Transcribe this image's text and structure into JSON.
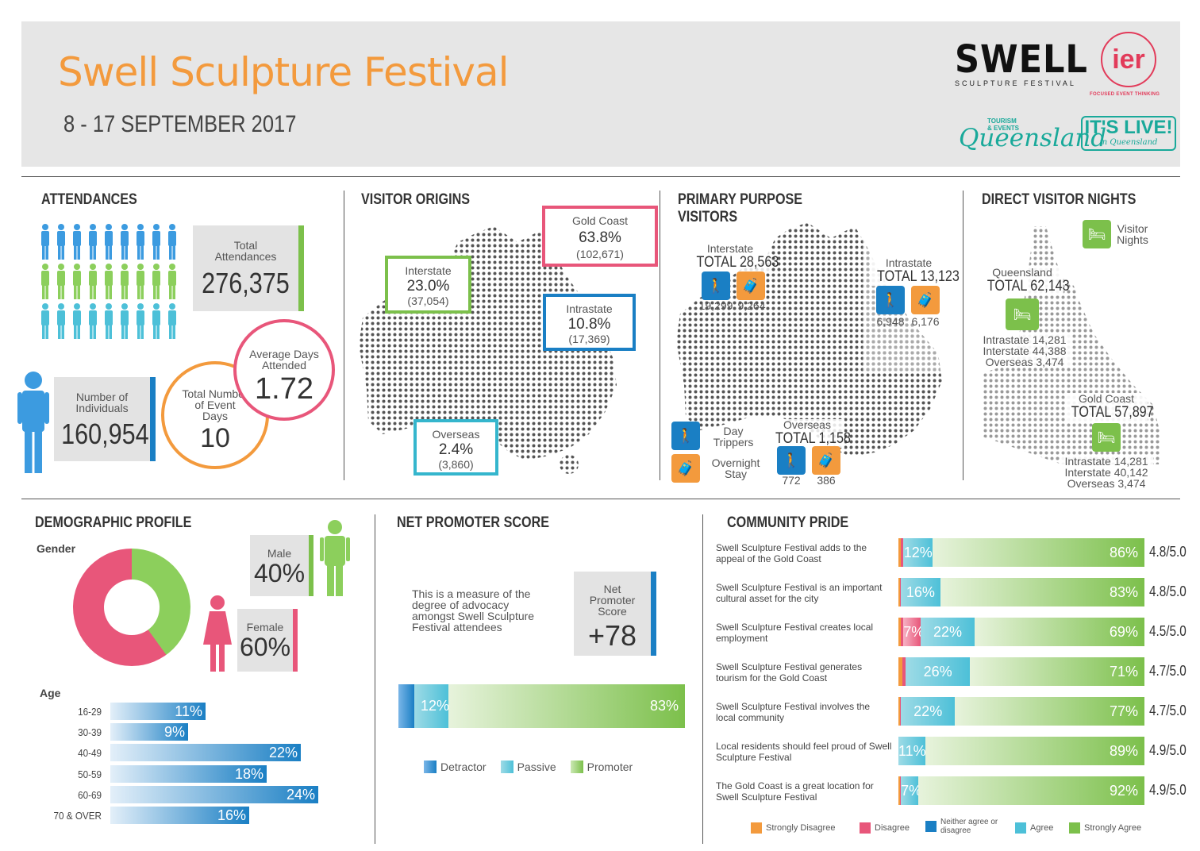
{
  "header": {
    "title": "Swell Sculpture Festival",
    "dates": "8 - 17 SEPTEMBER 2017",
    "logos": {
      "swell": "SWELL",
      "swell_sub": "SCULPTURE FESTIVAL",
      "ier": "ier",
      "ier_sub": "FOCUSED EVENT THINKING",
      "tourism_small": "TOURISM & EVENTS",
      "tourism": "Queensland",
      "itslive": "IT'S LIVE!",
      "itslive_sub": "in Queensland"
    }
  },
  "attendances": {
    "title": "ATTENDANCES",
    "total_label": "Total Attendances",
    "total_value": "276,375",
    "individuals_label": "Number of Individuals",
    "individuals_value": "160,954",
    "event_days_label": "Total Number of Event Days",
    "event_days_value": "10",
    "avg_days_label": "Average Days Attended",
    "avg_days_value": "1.72"
  },
  "visitor_origins": {
    "title": "VISITOR ORIGINS",
    "gold_coast": {
      "label": "Gold Coast",
      "pct": "63.8%",
      "count": "(102,671)"
    },
    "interstate": {
      "label": "Interstate",
      "pct": "23.0%",
      "count": "(37,054)"
    },
    "intrastate": {
      "label": "Intrastate",
      "pct": "10.8%",
      "count": "(17,369)"
    },
    "overseas": {
      "label": "Overseas",
      "pct": "2.4%",
      "count": "(3,860)"
    }
  },
  "primary_purpose": {
    "title_line1": "PRIMARY PURPOSE",
    "title_line2": "VISITORS",
    "interstate": {
      "label": "Interstate",
      "total": "TOTAL 28,563",
      "day": "19,299",
      "overnight": "9,264"
    },
    "intrastate": {
      "label": "Intrastate",
      "total": "TOTAL 13,123",
      "day": "6,948",
      "overnight": "6,176"
    },
    "overseas": {
      "label": "Overseas",
      "total": "TOTAL 1,158",
      "day": "772",
      "overnight": "386"
    },
    "legend_day": "Day Trippers",
    "legend_overnight": "Overnight Stay"
  },
  "visitor_nights": {
    "title": "DIRECT VISITOR NIGHTS",
    "legend": "Visitor Nights",
    "queensland": {
      "label": "Queensland",
      "total": "TOTAL 62,143",
      "intra": "Intrastate 14,281",
      "inter": "Interstate 44,388",
      "over": "Overseas 3,474"
    },
    "gold_coast": {
      "label": "Gold Coast",
      "total": "TOTAL 57,897",
      "intra": "Intrastate 14,281",
      "inter": "Interstate 40,142",
      "over": "Overseas 3,474"
    }
  },
  "demographic": {
    "title": "DEMOGRAPHIC PROFILE",
    "gender_label": "Gender",
    "male_label": "Male",
    "male_value": "40%",
    "female_label": "Female",
    "female_value": "60%",
    "age_label": "Age",
    "age_groups": [
      {
        "label": "16-29",
        "value": 11,
        "text": "11%"
      },
      {
        "label": "30-39",
        "value": 9,
        "text": "9%"
      },
      {
        "label": "40-49",
        "value": 22,
        "text": "22%"
      },
      {
        "label": "50-59",
        "value": 18,
        "text": "18%"
      },
      {
        "label": "60-69",
        "value": 24,
        "text": "24%"
      },
      {
        "label": "70 & OVER",
        "value": 16,
        "text": "16%"
      }
    ]
  },
  "nps": {
    "title": "NET PROMOTER SCORE",
    "description": "This is a measure of the degree of advocacy amongst Swell Sculpture Festival attendees",
    "score_label": "Net Promoter Score",
    "score_value": "+78",
    "passive_text": "12%",
    "promoter_text": "83%",
    "legend_detractor": "Detractor",
    "legend_passive": "Passive",
    "legend_promoter": "Promoter"
  },
  "community": {
    "title": "COMMUNITY PRIDE",
    "rows": [
      {
        "statement": "Swell Sculpture Festival adds to the appeal of the Gold Coast",
        "agree": "12%",
        "strong": "86%",
        "score": "4.8/5.0"
      },
      {
        "statement": "Swell Sculpture Festival is an important cultural asset for the city",
        "agree": "16%",
        "strong": "83%",
        "score": "4.8/5.0"
      },
      {
        "statement": "Swell Sculpture Festival creates local employment",
        "disagree": "7%",
        "agree": "22%",
        "strong": "69%",
        "score": "4.5/5.0"
      },
      {
        "statement": "Swell Sculpture Festival generates tourism for the Gold Coast",
        "agree": "26%",
        "strong": "71%",
        "score": "4.7/5.0"
      },
      {
        "statement": "Swell Sculpture Festival  involves the local community",
        "agree": "22%",
        "strong": "77%",
        "score": "4.7/5.0"
      },
      {
        "statement": "Local residents should feel proud of Swell Sculpture Festival",
        "agree": "11%",
        "strong": "89%",
        "score": "4.9/5.0"
      },
      {
        "statement": "The Gold Coast is a great location for Swell Sculpture Festival",
        "agree": "7%",
        "strong": "92%",
        "score": "4.9/5.0"
      }
    ],
    "legend": [
      "Strongly Disagree",
      "Disagree",
      "Neither agree or disagree",
      "Agree",
      "Strongly Agree"
    ]
  },
  "colors": {
    "orange": "#f39a3d",
    "pink": "#e8567a",
    "green": "#7cc04b",
    "blue": "#1a7fc4",
    "cyan": "#35b6cd",
    "grey": "#e3e3e3"
  }
}
